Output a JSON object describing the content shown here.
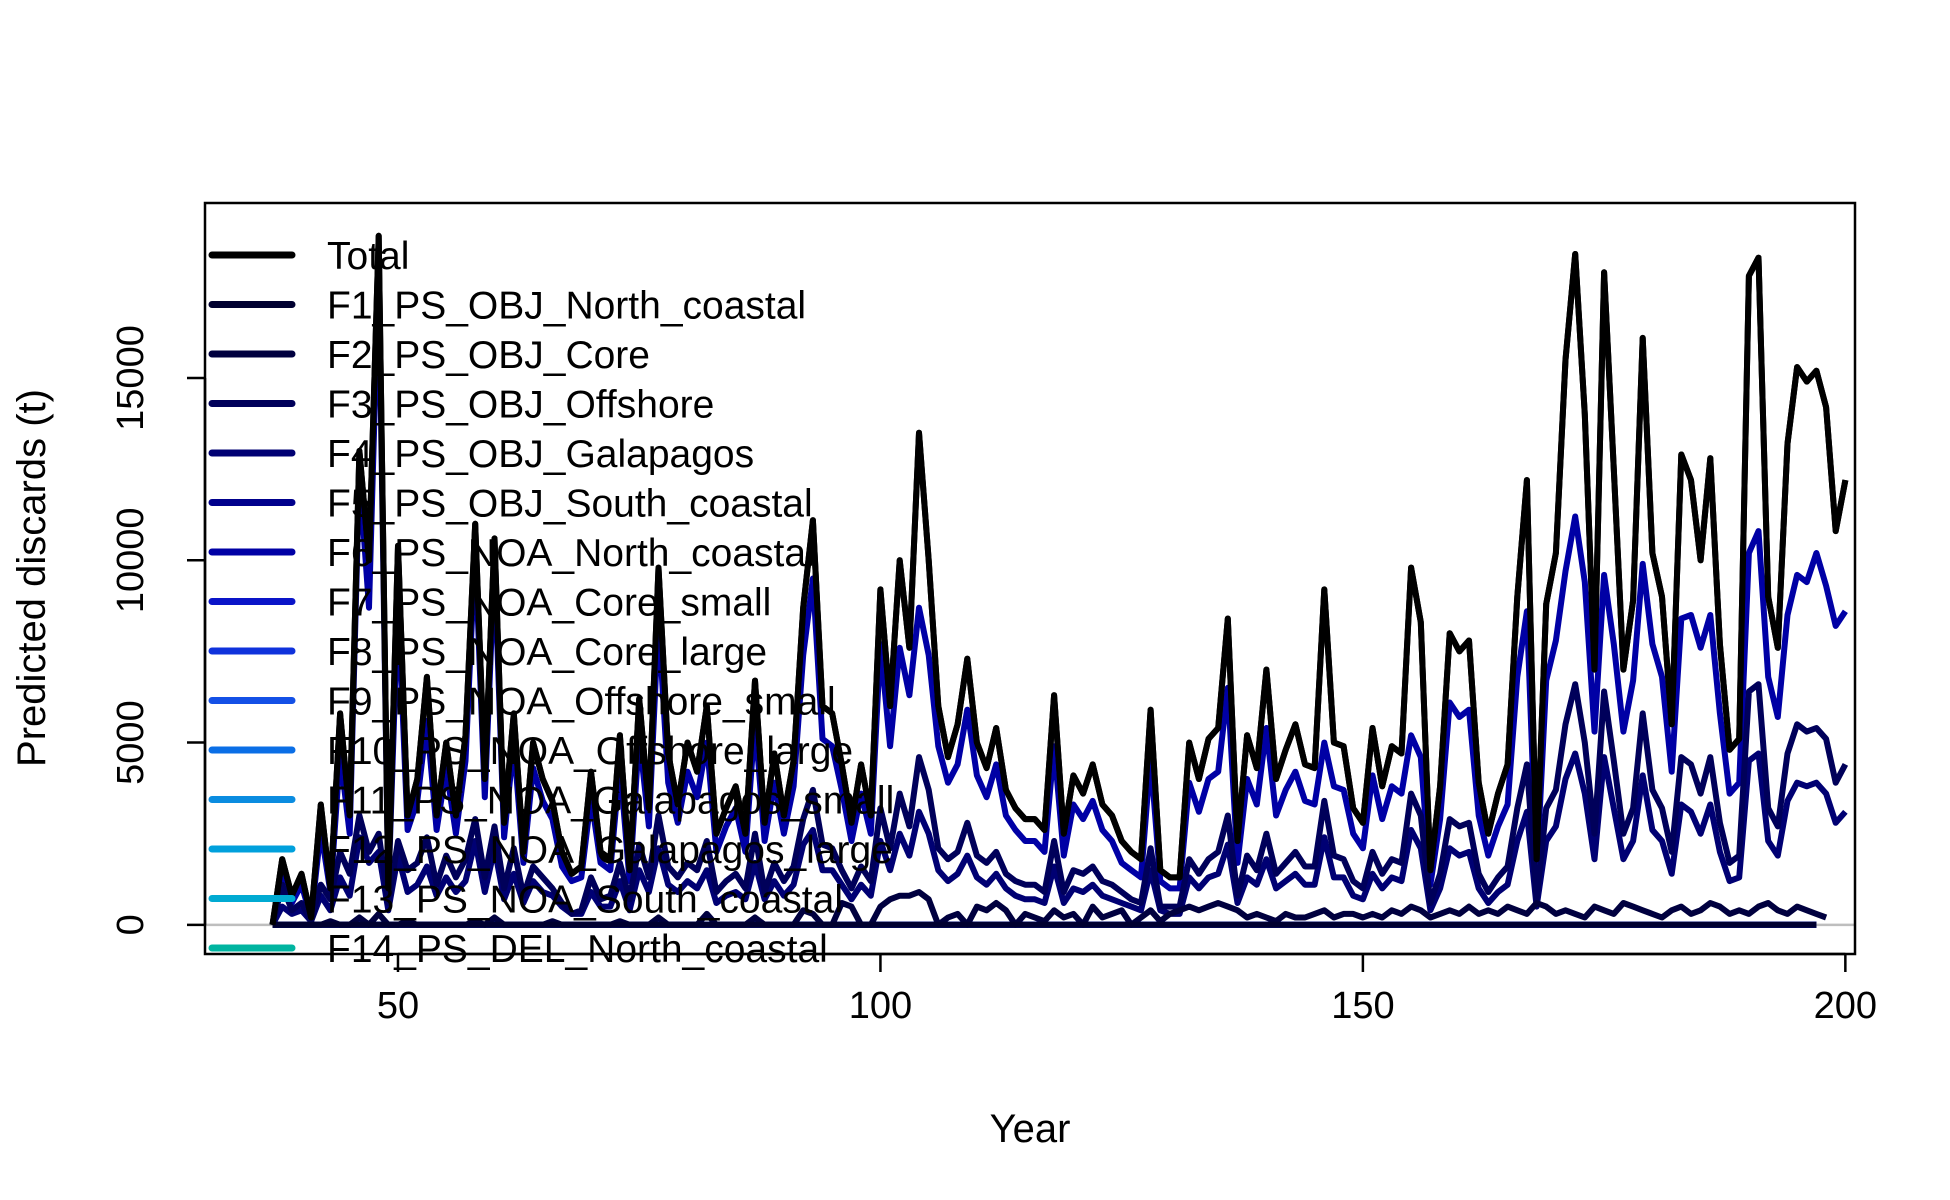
{
  "chart_data": {
    "type": "line",
    "xlabel": "Year",
    "ylabel": "Predicted discards (t)",
    "xlim": [
      30,
      201
    ],
    "ylim": [
      -800,
      19800
    ],
    "x_ticks": [
      50,
      100,
      150,
      200
    ],
    "y_ticks": [
      0,
      5000,
      10000,
      15000
    ],
    "x_start": 37,
    "x_end": 197,
    "reference_line": 0,
    "reference_line_color": "#bebebe",
    "legend_position": "top-left",
    "series": [
      {
        "name": "Total",
        "color": "#000000",
        "values": [
          0,
          1800,
          800,
          1400,
          200,
          3300,
          1000,
          5800,
          3000,
          13000,
          10000,
          18900,
          1000,
          10400,
          3000,
          4000,
          6800,
          3000,
          5000,
          3000,
          5200,
          11000,
          4000,
          10600,
          2800,
          5800,
          2000,
          5000,
          4000,
          3400,
          2000,
          1400,
          1600,
          4200,
          2000,
          1800,
          5200,
          1500,
          6200,
          3200,
          9800,
          4700,
          3300,
          5000,
          4200,
          6000,
          2500,
          3200,
          3800,
          2500,
          6700,
          2800,
          4700,
          3000,
          4500,
          8700,
          11100,
          6000,
          5800,
          4400,
          2800,
          4400,
          3000,
          9200,
          6000,
          10000,
          7600,
          13500,
          10000,
          6000,
          4600,
          5500,
          7300,
          5000,
          4300,
          5400,
          3700,
          3200,
          2900,
          2900,
          2600,
          6300,
          2500,
          4100,
          3600,
          4400,
          3300,
          3000,
          2300,
          2000,
          1800,
          5900,
          1500,
          1300,
          1300,
          5000,
          4000,
          5100,
          5400,
          8400,
          2300,
          5200,
          4300,
          7000,
          4000,
          4800,
          5500,
          4400,
          4300,
          9200,
          5000,
          4900,
          3200,
          2800,
          5400,
          3800,
          4900,
          4700,
          9800,
          8300,
          1500,
          3800,
          8000,
          7500,
          7800,
          3900,
          2500,
          3600,
          4400,
          9000,
          12200,
          1800,
          8800,
          10200,
          15500,
          18400,
          14000,
          7000,
          17900,
          12500,
          7000,
          8900,
          16100,
          10200,
          9000,
          5500,
          12900,
          12200,
          10000,
          12800,
          7700,
          4800,
          5100,
          17800,
          18300,
          9000,
          7600,
          13200,
          15300,
          14900,
          15200,
          14200,
          10800,
          12200
        ]
      },
      {
        "name": "F1_PS_OBJ_North_coastal",
        "color": "#000030",
        "values": []
      },
      {
        "name": "F2_PS_OBJ_Core",
        "color": "#00003f",
        "values": [
          0,
          0,
          0,
          0,
          0,
          0,
          100,
          0,
          0,
          200,
          0,
          300,
          0,
          0,
          100,
          0,
          0,
          0,
          0,
          0,
          0,
          100,
          0,
          200,
          0,
          0,
          0,
          0,
          0,
          100,
          0,
          0,
          0,
          0,
          0,
          0,
          100,
          0,
          0,
          0,
          200,
          0,
          0,
          0,
          0,
          300,
          0,
          0,
          0,
          0,
          200,
          0,
          0,
          0,
          0,
          400,
          300,
          0,
          0,
          600,
          500,
          0,
          0,
          500,
          700,
          800,
          800,
          900,
          700,
          0,
          200,
          300,
          0,
          500,
          400,
          600,
          400,
          0,
          300,
          200,
          100,
          400,
          200,
          300,
          0,
          500,
          200,
          300,
          400,
          0,
          200,
          400,
          100,
          300,
          400,
          500,
          400,
          500,
          600,
          500,
          400,
          200,
          300,
          200,
          100,
          300,
          200,
          200,
          300,
          400,
          200,
          300,
          300,
          200,
          300,
          200,
          400,
          300,
          500,
          400,
          200,
          300,
          400,
          300,
          500,
          300,
          400,
          300,
          500,
          400,
          300,
          600,
          500,
          300,
          400,
          300,
          200,
          500,
          400,
          300,
          600,
          500,
          400,
          300,
          200,
          400,
          500,
          300,
          400,
          600,
          500,
          300,
          400,
          300,
          500,
          600,
          400,
          300,
          500,
          400,
          300,
          200
        ]
      },
      {
        "name": "F3_PS_OBJ_Offshore",
        "color": "#00005a",
        "values": [
          0,
          1100,
          400,
          600,
          100,
          1100,
          700,
          2000,
          1400,
          3000,
          2000,
          2500,
          600,
          2300,
          1500,
          1700,
          2400,
          1100,
          1900,
          1300,
          1800,
          2900,
          1300,
          2700,
          1000,
          2100,
          800,
          1600,
          1300,
          1000,
          600,
          300,
          400,
          1300,
          700,
          800,
          1700,
          700,
          2200,
          1300,
          3000,
          1600,
          1300,
          1700,
          1500,
          2300,
          900,
          1200,
          1400,
          1000,
          2500,
          900,
          1700,
          1200,
          1600,
          2900,
          3700,
          2200,
          2100,
          1500,
          1000,
          1600,
          1200,
          3200,
          2100,
          3600,
          2700,
          4600,
          3700,
          2100,
          1800,
          2000,
          2800,
          1900,
          1700,
          2000,
          1400,
          1200,
          1100,
          1100,
          900,
          2300,
          900,
          1500,
          1400,
          1600,
          1200,
          1100,
          900,
          700,
          600,
          2100,
          500,
          500,
          500,
          1800,
          1400,
          1800,
          2000,
          3000,
          800,
          1900,
          1500,
          2500,
          1400,
          1700,
          2000,
          1600,
          1600,
          3400,
          1900,
          1800,
          1200,
          1000,
          2000,
          1400,
          1800,
          1700,
          3600,
          3000,
          600,
          1400,
          2900,
          2700,
          2800,
          1400,
          900,
          1300,
          1600,
          3200,
          4400,
          700,
          3200,
          3700,
          5500,
          6600,
          5000,
          2500,
          6400,
          4500,
          2500,
          3200,
          5800,
          3700,
          3200,
          2000,
          4600,
          4400,
          3600,
          4600,
          2800,
          1700,
          1900,
          6400,
          6600,
          3200,
          2700,
          4700,
          5500,
          5300,
          5400,
          5100,
          3900,
          4400
        ]
      },
      {
        "name": "F4_PS_OBJ_Galapagos",
        "color": "#000073",
        "values": [
          0,
          500,
          300,
          400,
          100,
          800,
          400,
          1300,
          800,
          2400,
          1700,
          2000,
          400,
          1900,
          900,
          1100,
          1600,
          800,
          1300,
          900,
          1200,
          2300,
          900,
          2100,
          700,
          1400,
          600,
          1200,
          900,
          800,
          500,
          300,
          300,
          900,
          500,
          500,
          1200,
          400,
          1500,
          900,
          2100,
          1100,
          900,
          1200,
          1000,
          1500,
          600,
          800,
          900,
          700,
          1700,
          700,
          1200,
          800,
          1100,
          2200,
          2600,
          1500,
          1500,
          1100,
          700,
          1100,
          800,
          2300,
          1500,
          2500,
          1900,
          3100,
          2500,
          1500,
          1200,
          1400,
          1900,
          1300,
          1100,
          1400,
          1000,
          800,
          700,
          700,
          600,
          1600,
          600,
          1000,
          900,
          1100,
          800,
          700,
          600,
          500,
          400,
          1500,
          400,
          300,
          300,
          1300,
          1000,
          1300,
          1400,
          2200,
          600,
          1300,
          1100,
          1800,
          1000,
          1200,
          1400,
          1100,
          1100,
          2400,
          1300,
          1300,
          800,
          700,
          1400,
          1000,
          1300,
          1200,
          2600,
          2100,
          400,
          1000,
          2100,
          1900,
          2000,
          1000,
          600,
          900,
          1100,
          2300,
          3100,
          500,
          2300,
          2700,
          4000,
          4700,
          3600,
          1800,
          4600,
          3200,
          1800,
          2300,
          4100,
          2600,
          2300,
          1400,
          3300,
          3100,
          2500,
          3300,
          2000,
          1200,
          1300,
          4500,
          4700,
          2300,
          1900,
          3400,
          3900,
          3800,
          3900,
          3600,
          2800,
          3100
        ]
      },
      {
        "name": "F5_PS_OBJ_South_coastal",
        "color": "#00008c",
        "values": []
      },
      {
        "name": "F6_PS_NOA_North_coastal",
        "color": "#0000a5",
        "values": [
          0,
          1500,
          600,
          1100,
          200,
          2600,
          900,
          4700,
          2500,
          12400,
          8700,
          18000,
          900,
          8900,
          2600,
          3400,
          5600,
          2600,
          4300,
          2500,
          4500,
          10300,
          3500,
          9900,
          2400,
          5000,
          1700,
          4300,
          3400,
          2900,
          1600,
          1200,
          1300,
          3500,
          1700,
          1500,
          4400,
          1200,
          5200,
          2700,
          8400,
          3900,
          2800,
          4200,
          3500,
          5000,
          2000,
          2700,
          3200,
          2000,
          5600,
          2300,
          3900,
          2500,
          3800,
          7400,
          9500,
          5100,
          4900,
          3700,
          2300,
          3600,
          2500,
          7700,
          4900,
          7600,
          6300,
          8700,
          7400,
          4900,
          3900,
          4400,
          5900,
          4100,
          3500,
          4400,
          3000,
          2600,
          2300,
          2300,
          2000,
          4900,
          1900,
          3300,
          2900,
          3400,
          2600,
          2300,
          1700,
          1500,
          1300,
          4600,
          1200,
          1000,
          1000,
          3900,
          3100,
          4000,
          4200,
          6500,
          1700,
          4000,
          3300,
          5400,
          3000,
          3700,
          4200,
          3400,
          3300,
          5000,
          3800,
          3700,
          2500,
          2100,
          4100,
          2900,
          3800,
          3600,
          5200,
          4600,
          1100,
          2900,
          6100,
          5700,
          5900,
          3000,
          1900,
          2700,
          3300,
          6800,
          8600,
          1400,
          6700,
          7800,
          9700,
          11200,
          9400,
          5300,
          9600,
          7700,
          5300,
          6700,
          9900,
          7700,
          6800,
          4200,
          8400,
          8500,
          7600,
          8500,
          5800,
          3600,
          3900,
          10200,
          10800,
          6800,
          5700,
          8500,
          9600,
          9400,
          10200,
          9300,
          8200,
          8600
        ]
      },
      {
        "name": "F7_PS_NOA_Core_small",
        "color": "#0a14c8",
        "values": []
      },
      {
        "name": "F8_PS_NOA_Core_large",
        "color": "#0f32dc",
        "values": []
      },
      {
        "name": "F9_PS_NOA_Offshore_small",
        "color": "#1450e6",
        "values": []
      },
      {
        "name": "F10_PS_NOA_Offshore_large",
        "color": "#0a6ee6",
        "values": []
      },
      {
        "name": "F11_PS_NOA_Galapagos_small",
        "color": "#0a8ce0",
        "values": []
      },
      {
        "name": "F12_PS_NOA_Galapagos_large",
        "color": "#00a0dc",
        "values": []
      },
      {
        "name": "F13_PS_NOA_South_coastal",
        "color": "#00aad2",
        "values": []
      },
      {
        "name": "F14_PS_DEL_North_coastal",
        "color": "#00b4a0",
        "values": []
      }
    ]
  }
}
